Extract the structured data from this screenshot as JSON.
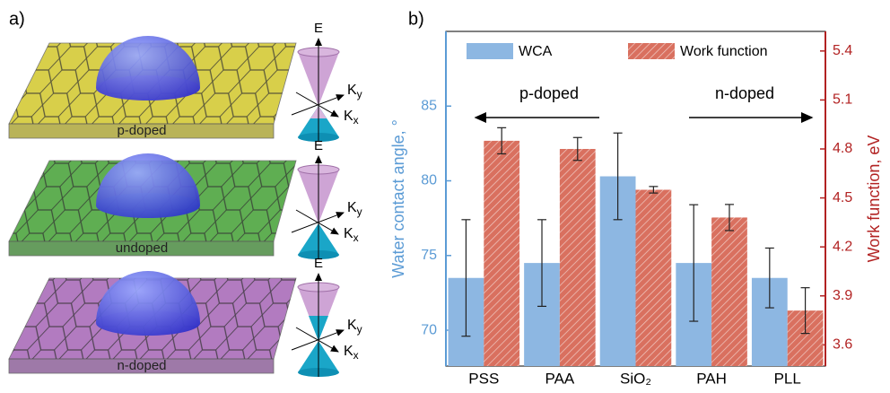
{
  "panel_labels": [
    "a)",
    "b)"
  ],
  "figure_a": {
    "plates": [
      {
        "label": "p-doped",
        "color": "#d8cf4a"
      },
      {
        "label": "undoped",
        "color": "#5fae52"
      },
      {
        "label": "n-doped",
        "color": "#b27bc0"
      }
    ],
    "cone_labels": {
      "energy": "E",
      "ky": {
        "base": "K",
        "sub": "y"
      },
      "kx": {
        "base": "K",
        "sub": "x"
      }
    }
  },
  "chart_data": {
    "type": "bar",
    "categories": [
      "PSS",
      "PAA",
      "SiO₂",
      "PAH",
      "PLL"
    ],
    "y_label": "Water contact angle, °",
    "y2_label": "Work function, eV",
    "series": [
      {
        "name": "WCA",
        "color": "#8db7e2",
        "values": [
          73.5,
          74.5,
          80.3,
          74.5,
          73.5
        ],
        "errors": [
          3.9,
          2.9,
          2.9,
          3.9,
          2.0
        ]
      },
      {
        "name": "Work function",
        "color": "#d9705f",
        "axis": "y2",
        "hatched": true,
        "values": [
          4.85,
          4.8,
          4.55,
          4.38,
          3.81
        ],
        "errors": [
          0.08,
          0.07,
          0.02,
          0.08,
          0.14
        ]
      }
    ],
    "ylim": [
      67.6,
      90
    ],
    "yticks": [
      70,
      75,
      80,
      85
    ],
    "y_color": "#5b9bd5",
    "y2lim": [
      3.47,
      5.52
    ],
    "y2ticks": [
      3.6,
      3.9,
      4.2,
      4.5,
      4.8,
      5.1,
      5.4
    ],
    "y2_color": "#b22222",
    "annotations": [
      {
        "text": "p-doped",
        "direction": "left"
      },
      {
        "text": "n-doped",
        "direction": "right"
      }
    ]
  }
}
